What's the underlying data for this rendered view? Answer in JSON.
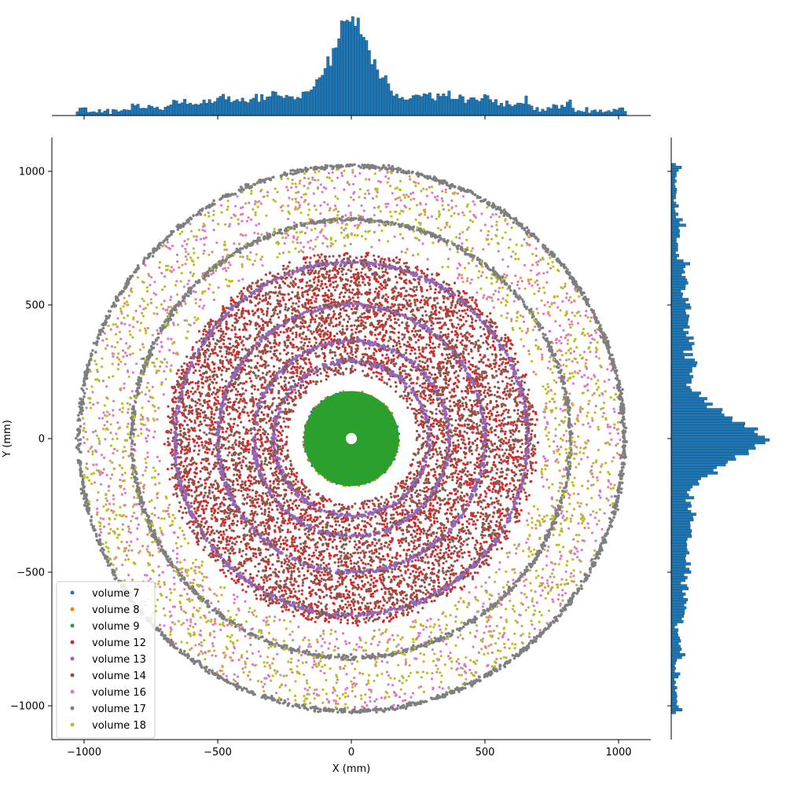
{
  "chart_data": {
    "type": "scatter",
    "title": "",
    "xlabel": "X (mm)",
    "ylabel": "Y (mm)",
    "xlim": [
      -1125,
      1125
    ],
    "ylim": [
      -1125,
      1125
    ],
    "xticks": [
      -1000,
      -500,
      0,
      500,
      1000
    ],
    "yticks": [
      -1000,
      -500,
      0,
      500,
      1000
    ],
    "xtick_labels": [
      "−1000",
      "−500",
      "0",
      "500",
      "1000"
    ],
    "ytick_labels": [
      "−1000",
      "−500",
      "0",
      "500",
      "1000"
    ],
    "grid": false,
    "legend_position": "lower-left",
    "series": [
      {
        "name": "volume 7",
        "color": "#1f77b4",
        "rings": [],
        "disk": [
          0,
          180
        ]
      },
      {
        "name": "volume 8",
        "color": "#ff7f0e",
        "rings": [],
        "disk": [
          0,
          180
        ]
      },
      {
        "name": "volume 9",
        "color": "#2ca02c",
        "rings": [],
        "disk": [
          30,
          178
        ]
      },
      {
        "name": "volume 12",
        "color": "#d62728",
        "rings": [],
        "annulus": [
          240,
          700
        ]
      },
      {
        "name": "volume 13",
        "color": "#9467bd",
        "rings": [
          290,
          365,
          500,
          660
        ],
        "annulus": null
      },
      {
        "name": "volume 14",
        "color": "#8c564b",
        "rings": [],
        "annulus": [
          240,
          690
        ]
      },
      {
        "name": "volume 16",
        "color": "#e377c2",
        "rings": [],
        "annulus": [
          720,
          1010
        ]
      },
      {
        "name": "volume 17",
        "color": "#7f7f7f",
        "rings": [
          820,
          1020
        ],
        "annulus": null
      },
      {
        "name": "volume 18",
        "color": "#bcbd22",
        "rings": [],
        "annulus": [
          720,
          1010
        ]
      }
    ],
    "marginal_x": {
      "type": "histogram",
      "color": "#1f77b4",
      "description_peak_x": 0
    },
    "marginal_y": {
      "type": "histogram",
      "color": "#1f77b4",
      "description_peak_y": 0
    }
  }
}
